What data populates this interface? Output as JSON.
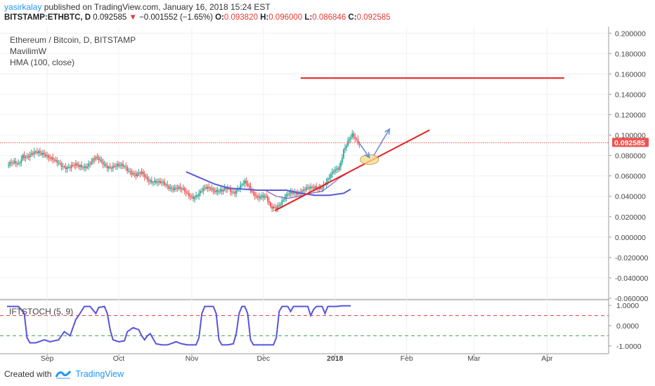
{
  "header": {
    "user": "yasirkalay",
    "published": " published on TradingView.com, January 16, 2018 15:24 EST",
    "symbol": "BITSTAMP:ETHBTC, D",
    "last": "0.092585",
    "change_arrow": "▼",
    "change": "−0.001552 (−1.65%)",
    "o_label": "O:",
    "o": "0.093820",
    "h_label": "H:",
    "h": "0.096000",
    "l_label": "L:",
    "l": "0.086846",
    "c_label": "C:",
    "c": "0.092585"
  },
  "legend": {
    "title": "Ethereum / Bitcoin, D, BITSTAMP",
    "indicator1": "MavilimW",
    "indicator2": "HMA (100, close)"
  },
  "sub_indicator": {
    "title": "IFTSTOCH (5, 9)"
  },
  "footer": {
    "created_with": "Created with",
    "brand": "TradingView"
  },
  "colors": {
    "up": "#26a69a",
    "down": "#ef5350",
    "hma": "#5b5bd6",
    "mavilim": "#8a5ab8",
    "trend": "#e81e1e",
    "arrow": "#6a8fd8",
    "ellipse_fill": "#f6d98a",
    "ellipse_stroke": "#c9a14a",
    "stoch": "#5555dd",
    "level_up": "#e53935",
    "level_down": "#43a047",
    "price_tag": "#ef5350"
  },
  "chart_data": {
    "type": "candlestick",
    "symbol": "BITSTAMP:ETHBTC",
    "timeframe": "D",
    "x_ticks": [
      "Sep",
      "Oct",
      "Nov",
      "Dec",
      "2018",
      "Feb",
      "Mar",
      "Apr"
    ],
    "y_ticks": [
      "0.200000",
      "0.180000",
      "0.160000",
      "0.140000",
      "0.120000",
      "0.100000",
      "0.080000",
      "0.060000",
      "0.040000",
      "0.020000",
      "0.000000",
      "-0.020000",
      "-0.040000",
      "-0.060000"
    ],
    "y_tick_values": [
      0.2,
      0.18,
      0.16,
      0.14,
      0.12,
      0.1,
      0.08,
      0.06,
      0.04,
      0.02,
      0.0,
      -0.02,
      -0.04,
      -0.06
    ],
    "ylim": [
      -0.06,
      0.205
    ],
    "last_price": "0.092585",
    "last_price_value": 0.092585,
    "close_path": [
      [
        0,
        0.07
      ],
      [
        4,
        0.071
      ],
      [
        8,
        0.072
      ],
      [
        11,
        0.082
      ],
      [
        14,
        0.079
      ],
      [
        18,
        0.08
      ],
      [
        22,
        0.083
      ],
      [
        26,
        0.084
      ],
      [
        30,
        0.077
      ],
      [
        34,
        0.072
      ],
      [
        38,
        0.071
      ],
      [
        42,
        0.07
      ],
      [
        46,
        0.069
      ],
      [
        50,
        0.068
      ],
      [
        54,
        0.07
      ],
      [
        58,
        0.074
      ],
      [
        62,
        0.076
      ],
      [
        66,
        0.073
      ],
      [
        70,
        0.071
      ],
      [
        74,
        0.069
      ],
      [
        78,
        0.068
      ],
      [
        82,
        0.07
      ],
      [
        86,
        0.066
      ],
      [
        90,
        0.06
      ],
      [
        94,
        0.061
      ],
      [
        98,
        0.058
      ],
      [
        102,
        0.056
      ],
      [
        106,
        0.052
      ],
      [
        110,
        0.051
      ],
      [
        114,
        0.05
      ],
      [
        118,
        0.049
      ],
      [
        122,
        0.045
      ],
      [
        126,
        0.042
      ],
      [
        130,
        0.041
      ],
      [
        134,
        0.042
      ],
      [
        138,
        0.046
      ],
      [
        142,
        0.049
      ],
      [
        146,
        0.047
      ],
      [
        150,
        0.044
      ],
      [
        154,
        0.046
      ],
      [
        158,
        0.045
      ],
      [
        162,
        0.05
      ],
      [
        166,
        0.052
      ],
      [
        170,
        0.046
      ],
      [
        174,
        0.042
      ],
      [
        178,
        0.04
      ],
      [
        181,
        0.037
      ],
      [
        184,
        0.028
      ],
      [
        188,
        0.031
      ],
      [
        192,
        0.036
      ],
      [
        196,
        0.04
      ],
      [
        200,
        0.043
      ],
      [
        204,
        0.046
      ],
      [
        208,
        0.047
      ],
      [
        212,
        0.046
      ],
      [
        216,
        0.049
      ],
      [
        220,
        0.051
      ],
      [
        224,
        0.055
      ],
      [
        228,
        0.063
      ],
      [
        232,
        0.07
      ],
      [
        235,
        0.087
      ],
      [
        238,
        0.093
      ],
      [
        241,
        0.098
      ],
      [
        244,
        0.094
      ],
      [
        246,
        0.0926
      ]
    ],
    "hma_path": [
      [
        125,
        0.064
      ],
      [
        135,
        0.058
      ],
      [
        145,
        0.052
      ],
      [
        155,
        0.048
      ],
      [
        165,
        0.047
      ],
      [
        175,
        0.046
      ],
      [
        185,
        0.046
      ],
      [
        195,
        0.046
      ],
      [
        205,
        0.043
      ],
      [
        215,
        0.041
      ],
      [
        225,
        0.041
      ],
      [
        235,
        0.043
      ],
      [
        240,
        0.047
      ]
    ],
    "mavilim_path": [
      [
        180,
        0.046
      ],
      [
        188,
        0.04
      ],
      [
        196,
        0.038
      ],
      [
        204,
        0.04
      ],
      [
        212,
        0.043
      ],
      [
        220,
        0.045
      ],
      [
        226,
        0.051
      ],
      [
        232,
        0.058
      ],
      [
        238,
        0.063
      ]
    ],
    "resistance_line": {
      "from": [
        205,
        0.156
      ],
      "to": [
        389,
        0.156
      ]
    },
    "trend_line": {
      "from": [
        187,
        0.026
      ],
      "to": [
        295,
        0.105
      ]
    },
    "ellipse_at": [
      253,
      0.076
    ],
    "arrow_down": {
      "from": [
        245,
        0.094
      ],
      "to": [
        253,
        0.078
      ]
    },
    "arrow_up": {
      "from": [
        256,
        0.08
      ],
      "to": [
        267,
        0.106
      ]
    },
    "sub_ticks": [
      "1.0000",
      "0.0000",
      "-1.0000"
    ],
    "sub_tick_values": [
      1,
      0,
      -1
    ],
    "sub_levels": [
      0.5,
      -0.5
    ],
    "sub_ylim": [
      -1.25,
      1.25
    ],
    "stoch_path": [
      [
        0,
        0.95
      ],
      [
        8,
        0.95
      ],
      [
        12,
        0.6
      ],
      [
        14,
        -0.6
      ],
      [
        16,
        -0.85
      ],
      [
        20,
        -0.85
      ],
      [
        26,
        -0.7
      ],
      [
        30,
        -0.8
      ],
      [
        36,
        -0.7
      ],
      [
        40,
        -0.3
      ],
      [
        44,
        -0.5
      ],
      [
        48,
        0.3
      ],
      [
        50,
        0.5
      ],
      [
        54,
        0.95
      ],
      [
        58,
        0.95
      ],
      [
        62,
        0.6
      ],
      [
        64,
        0.9
      ],
      [
        68,
        0.95
      ],
      [
        70,
        0.6
      ],
      [
        72,
        -0.2
      ],
      [
        74,
        -0.7
      ],
      [
        78,
        -0.8
      ],
      [
        82,
        -0.75
      ],
      [
        84,
        -0.3
      ],
      [
        88,
        -0.1
      ],
      [
        92,
        -0.2
      ],
      [
        94,
        -0.5
      ],
      [
        96,
        -0.7
      ],
      [
        98,
        -0.5
      ],
      [
        100,
        -0.4
      ],
      [
        104,
        -0.9
      ],
      [
        108,
        -0.95
      ],
      [
        112,
        -0.95
      ],
      [
        118,
        -0.8
      ],
      [
        122,
        -0.9
      ],
      [
        126,
        -0.95
      ],
      [
        132,
        -0.95
      ],
      [
        134,
        -0.6
      ],
      [
        136,
        0.6
      ],
      [
        138,
        0.95
      ],
      [
        144,
        0.95
      ],
      [
        146,
        0.6
      ],
      [
        148,
        -0.7
      ],
      [
        150,
        -0.95
      ],
      [
        154,
        -0.95
      ],
      [
        158,
        -0.9
      ],
      [
        160,
        -0.4
      ],
      [
        162,
        0.6
      ],
      [
        164,
        0.95
      ],
      [
        166,
        0.95
      ],
      [
        168,
        0.6
      ],
      [
        170,
        -0.7
      ],
      [
        172,
        -0.95
      ],
      [
        180,
        -0.95
      ],
      [
        186,
        -0.95
      ],
      [
        188,
        -0.6
      ],
      [
        190,
        0.7
      ],
      [
        192,
        0.95
      ],
      [
        196,
        0.95
      ],
      [
        198,
        0.7
      ],
      [
        200,
        0.95
      ],
      [
        206,
        0.95
      ],
      [
        210,
        0.95
      ],
      [
        212,
        0.5
      ],
      [
        214,
        0.8
      ],
      [
        216,
        0.95
      ],
      [
        220,
        0.95
      ],
      [
        222,
        0.6
      ],
      [
        224,
        0.95
      ],
      [
        230,
        0.95
      ],
      [
        234,
        0.98
      ],
      [
        240,
        0.98
      ]
    ]
  }
}
